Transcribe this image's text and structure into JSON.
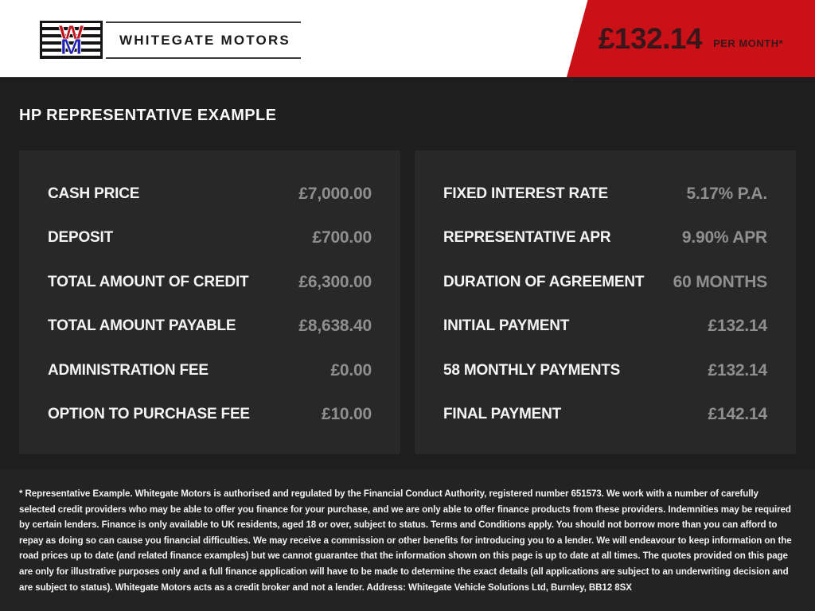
{
  "header": {
    "dealer_name": "WHITEGATE MOTORS",
    "logo": {
      "letter_top": "W",
      "letter_bottom": "M"
    },
    "price_banner": {
      "amount": "£132.14",
      "period": "PER MONTH*"
    }
  },
  "section_title": "HP REPRESENTATIVE EXAMPLE",
  "panels": {
    "left": {
      "rows": [
        {
          "label": "CASH PRICE",
          "value": "£7,000.00"
        },
        {
          "label": "DEPOSIT",
          "value": "£700.00"
        },
        {
          "label": "TOTAL AMOUNT OF CREDIT",
          "value": "£6,300.00"
        },
        {
          "label": "TOTAL AMOUNT PAYABLE",
          "value": "£8,638.40"
        },
        {
          "label": "ADMINISTRATION FEE",
          "value": "£0.00"
        },
        {
          "label": "OPTION TO PURCHASE FEE",
          "value": "£10.00"
        }
      ]
    },
    "right": {
      "rows": [
        {
          "label": "FIXED INTEREST RATE",
          "value": "5.17% P.A."
        },
        {
          "label": "REPRESENTATIVE APR",
          "value": "9.90% APR"
        },
        {
          "label": "DURATION OF AGREEMENT",
          "value": "60 MONTHS"
        },
        {
          "label": "INITIAL PAYMENT",
          "value": "£132.14"
        },
        {
          "label": "58 MONTHLY PAYMENTS",
          "value": "£132.14"
        },
        {
          "label": "FINAL PAYMENT",
          "value": "£142.14"
        }
      ]
    }
  },
  "disclaimer": "* Representative Example. Whitegate Motors is authorised and regulated by the Financial Conduct Authority, registered number 651573. We work with a number of carefully selected credit providers who may be able to offer you finance for your purchase, and we are only able to offer finance products from these providers. Indemnities may be required by certain lenders. Finance is only available to UK residents, aged 18 or over, subject to status. Terms and Conditions apply. You should not borrow more than you can afford to repay as doing so can cause you financial difficulties. We may receive a commission or other benefits for introducing you to a lender. We will endeavour to keep information on the road prices up to date (and related finance examples) but we cannot guarantee that the information shown on this page is up to date at all times. The quotes provided on this page are only for illustrative purposes only and a full finance application will have to be made to determine the exact details (all applications are subject to an underwriting decision and are subject to status). Whitegate Motors acts as a credit broker and not a lender. Address: Whitegate Vehicle Solutions Ltd, Burnley, BB12 8SX",
  "colors": {
    "banner_red": "#cb1118",
    "banner_text": "#38161a",
    "page_background": "#1e1e1e",
    "panel_background": "#282828",
    "disclaimer_background": "#232323",
    "label_text": "#f4f4f4",
    "value_text": "#8f8f8f"
  }
}
